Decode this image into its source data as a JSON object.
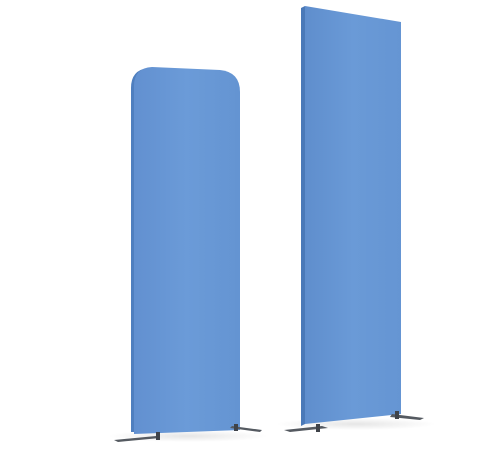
{
  "scene": {
    "background_color": "#ffffff",
    "subjects": [
      {
        "kind": "fabric-banner-stand",
        "shape": "rounded-top",
        "fabric_color": "#6a9ad6",
        "feet_color": "#555a61"
      },
      {
        "kind": "fabric-banner-stand",
        "shape": "rectangular",
        "fabric_color": "#6a9ad6",
        "feet_color": "#555a61"
      }
    ]
  }
}
